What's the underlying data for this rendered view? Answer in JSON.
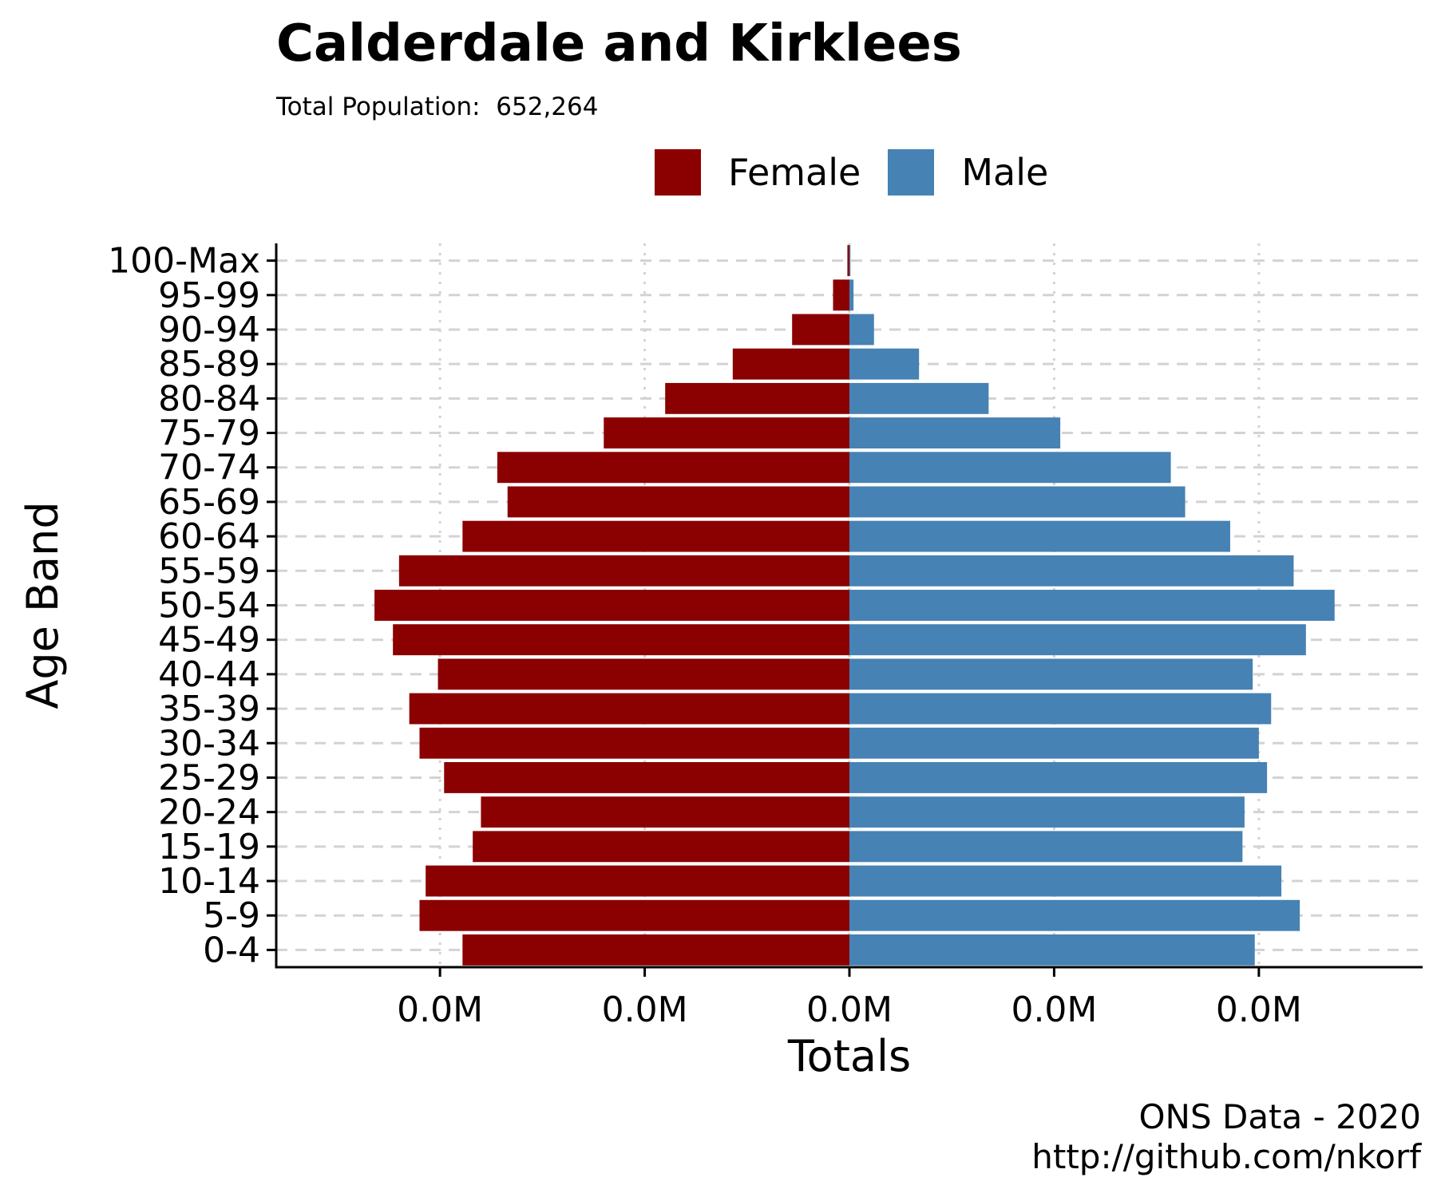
{
  "title": "Calderdale and Kirklees",
  "subtitle": "Total Population:  652,264",
  "legend": [
    {
      "label": "Female",
      "color": "#8B0000"
    },
    {
      "label": "Male",
      "color": "#4682B4"
    }
  ],
  "caption": {
    "line1": "ONS Data - 2020",
    "line2": "http://github.com/nkorf"
  },
  "chart_data": {
    "type": "bar",
    "orientation": "horizontal",
    "style": "population-pyramid",
    "xlabel": "Totals",
    "ylabel": "Age Band",
    "xlim": [
      -28000,
      28000
    ],
    "xticks": [
      -20000,
      -10000,
      0,
      10000,
      20000
    ],
    "xtick_labels": [
      "0.0M",
      "0.0M",
      "0.0M",
      "0.0M",
      "0.0M"
    ],
    "grid": "dashed horizontal, dotted vertical",
    "legend_position": "top",
    "categories": [
      "0-4",
      "5-9",
      "10-14",
      "15-19",
      "20-24",
      "25-29",
      "30-34",
      "35-39",
      "40-44",
      "45-49",
      "50-54",
      "55-59",
      "60-64",
      "65-69",
      "70-74",
      "75-79",
      "80-84",
      "85-89",
      "90-94",
      "95-99",
      "100-Max"
    ],
    "series": [
      {
        "name": "Female",
        "color": "#8B0000",
        "values": [
          -18900,
          -21000,
          -20700,
          -18400,
          -18000,
          -19800,
          -21000,
          -21500,
          -20100,
          -22300,
          -23200,
          -22000,
          -18900,
          -16700,
          -17200,
          -12000,
          -9000,
          -5700,
          -2800,
          -800,
          -100
        ]
      },
      {
        "name": "Male",
        "color": "#4682B4",
        "values": [
          19800,
          22000,
          21100,
          19200,
          19300,
          20400,
          20000,
          20600,
          19700,
          22300,
          23700,
          21700,
          18600,
          16400,
          15700,
          10300,
          6800,
          3400,
          1200,
          200,
          50
        ]
      }
    ]
  }
}
